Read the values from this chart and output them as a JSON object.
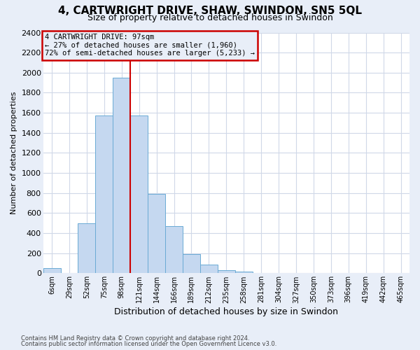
{
  "title": "4, CARTWRIGHT DRIVE, SHAW, SWINDON, SN5 5QL",
  "subtitle": "Size of property relative to detached houses in Swindon",
  "xlabel": "Distribution of detached houses by size in Swindon",
  "ylabel": "Number of detached properties",
  "footer_line1": "Contains HM Land Registry data © Crown copyright and database right 2024.",
  "footer_line2": "Contains public sector information licensed under the Open Government Licence v3.0.",
  "categories": [
    "6sqm",
    "29sqm",
    "52sqm",
    "75sqm",
    "98sqm",
    "121sqm",
    "144sqm",
    "166sqm",
    "189sqm",
    "212sqm",
    "235sqm",
    "258sqm",
    "281sqm",
    "304sqm",
    "327sqm",
    "350sqm",
    "373sqm",
    "396sqm",
    "419sqm",
    "442sqm",
    "465sqm"
  ],
  "values": [
    50,
    0,
    500,
    1575,
    1950,
    1575,
    790,
    470,
    190,
    85,
    30,
    20,
    0,
    0,
    0,
    0,
    0,
    0,
    0,
    0,
    0
  ],
  "bar_color": "#c5d8f0",
  "bar_edge_color": "#6aaad4",
  "highlight_bar_index": 4,
  "annotation_text_line1": "4 CARTWRIGHT DRIVE: 97sqm",
  "annotation_text_line2": "← 27% of detached houses are smaller (1,960)",
  "annotation_text_line3": "72% of semi-detached houses are larger (5,233) →",
  "annotation_box_edgecolor": "#cc0000",
  "ylim": [
    0,
    2400
  ],
  "yticks": [
    0,
    200,
    400,
    600,
    800,
    1000,
    1200,
    1400,
    1600,
    1800,
    2000,
    2200,
    2400
  ],
  "plot_bg_color": "#ffffff",
  "fig_bg_color": "#e8eef8",
  "grid_color": "#d0d8e8",
  "title_fontsize": 11,
  "subtitle_fontsize": 9,
  "red_line_color": "#cc0000",
  "red_line_bar_index": 4
}
